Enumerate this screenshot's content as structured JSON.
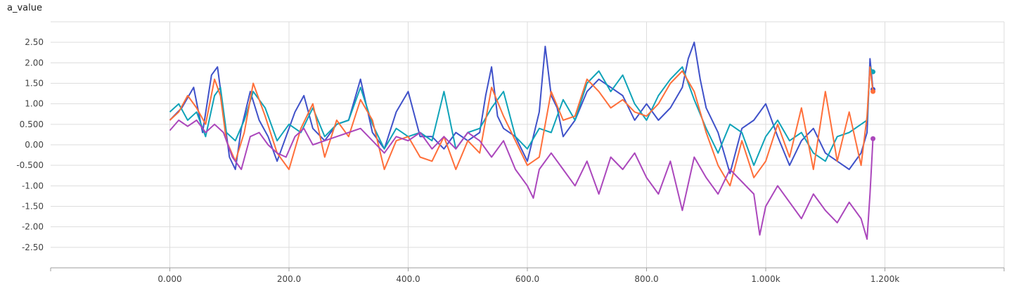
{
  "chart_data": {
    "type": "line",
    "title": "a_value",
    "xlabel": "",
    "ylabel": "",
    "xlim": [
      -200,
      1400
    ],
    "ylim": [
      -3.0,
      3.0
    ],
    "x_ticks": [
      {
        "value": 0,
        "label": "0.000"
      },
      {
        "value": 200,
        "label": "200.0"
      },
      {
        "value": 400,
        "label": "400.0"
      },
      {
        "value": 600,
        "label": "600.0"
      },
      {
        "value": 800,
        "label": "800.0"
      },
      {
        "value": 1000,
        "label": "1.000k"
      },
      {
        "value": 1200,
        "label": "1.200k"
      }
    ],
    "y_ticks": [
      {
        "value": 2.5,
        "label": "2.50"
      },
      {
        "value": 2.0,
        "label": "2.00"
      },
      {
        "value": 1.5,
        "label": "1.50"
      },
      {
        "value": 1.0,
        "label": "1.00"
      },
      {
        "value": 0.5,
        "label": "0.500"
      },
      {
        "value": 0.0,
        "label": "0.00"
      },
      {
        "value": -0.5,
        "label": "-0.500"
      },
      {
        "value": -1.0,
        "label": "-1.00"
      },
      {
        "value": -1.5,
        "label": "-1.50"
      },
      {
        "value": -2.0,
        "label": "-2.00"
      },
      {
        "value": -2.5,
        "label": "-2.50"
      }
    ],
    "grid": true,
    "legend": "none",
    "series": [
      {
        "color": "#3f51c9",
        "x": [
          0,
          20,
          40,
          55,
          70,
          80,
          90,
          100,
          110,
          120,
          135,
          150,
          165,
          180,
          195,
          210,
          225,
          240,
          260,
          280,
          300,
          320,
          340,
          360,
          380,
          400,
          420,
          440,
          460,
          480,
          500,
          520,
          530,
          540,
          550,
          560,
          580,
          600,
          620,
          630,
          640,
          650,
          660,
          680,
          700,
          720,
          740,
          760,
          780,
          800,
          820,
          840,
          860,
          870,
          880,
          890,
          900,
          920,
          940,
          960,
          980,
          1000,
          1020,
          1040,
          1060,
          1080,
          1100,
          1120,
          1140,
          1160,
          1170,
          1175,
          1180
        ],
        "y": [
          0.6,
          0.9,
          1.4,
          0.3,
          1.7,
          1.9,
          0.8,
          -0.3,
          -0.6,
          0.4,
          1.3,
          0.6,
          0.2,
          -0.4,
          0.2,
          0.8,
          1.2,
          0.4,
          0.1,
          0.5,
          0.6,
          1.6,
          0.3,
          -0.1,
          0.8,
          1.3,
          0.2,
          0.2,
          -0.1,
          0.3,
          0.1,
          0.3,
          1.2,
          1.9,
          0.7,
          0.4,
          0.2,
          -0.4,
          0.8,
          2.4,
          1.2,
          0.9,
          0.2,
          0.6,
          1.3,
          1.6,
          1.4,
          1.2,
          0.6,
          1.0,
          0.6,
          0.9,
          1.4,
          2.1,
          2.5,
          1.6,
          0.9,
          0.3,
          -0.7,
          0.4,
          0.6,
          1.0,
          0.2,
          -0.5,
          0.1,
          0.4,
          -0.2,
          -0.4,
          -0.6,
          -0.2,
          0.3,
          2.1,
          1.35
        ]
      },
      {
        "color": "#0fa3b8",
        "x": [
          0,
          15,
          30,
          45,
          60,
          75,
          85,
          95,
          110,
          125,
          140,
          160,
          180,
          200,
          220,
          240,
          260,
          280,
          300,
          320,
          340,
          360,
          380,
          400,
          420,
          440,
          460,
          480,
          500,
          520,
          540,
          560,
          580,
          600,
          620,
          640,
          660,
          680,
          700,
          720,
          740,
          760,
          780,
          800,
          820,
          840,
          860,
          880,
          900,
          920,
          940,
          960,
          980,
          1000,
          1020,
          1040,
          1060,
          1080,
          1100,
          1120,
          1140,
          1160,
          1170,
          1175,
          1180
        ],
        "y": [
          0.8,
          1.0,
          0.6,
          0.8,
          0.2,
          1.2,
          1.4,
          0.3,
          0.1,
          0.6,
          1.3,
          0.9,
          0.1,
          0.5,
          0.3,
          0.9,
          0.2,
          0.5,
          0.6,
          1.4,
          0.5,
          -0.1,
          0.4,
          0.2,
          0.3,
          0.1,
          1.3,
          -0.1,
          0.3,
          0.4,
          0.9,
          1.3,
          0.2,
          -0.1,
          0.4,
          0.3,
          1.1,
          0.6,
          1.5,
          1.8,
          1.3,
          1.7,
          1.0,
          0.6,
          1.2,
          1.6,
          1.9,
          1.1,
          0.4,
          -0.2,
          0.5,
          0.3,
          -0.5,
          0.2,
          0.6,
          0.1,
          0.3,
          -0.2,
          -0.4,
          0.2,
          0.3,
          0.5,
          0.6,
          1.9,
          1.78
        ]
      },
      {
        "color": "#ff6f3a",
        "x": [
          0,
          15,
          30,
          45,
          60,
          75,
          85,
          95,
          110,
          125,
          140,
          160,
          180,
          200,
          220,
          240,
          260,
          280,
          300,
          320,
          340,
          360,
          380,
          400,
          420,
          440,
          460,
          480,
          500,
          520,
          540,
          560,
          580,
          600,
          620,
          640,
          660,
          680,
          700,
          720,
          740,
          760,
          780,
          800,
          820,
          840,
          860,
          880,
          900,
          920,
          940,
          960,
          980,
          1000,
          1020,
          1040,
          1060,
          1080,
          1100,
          1120,
          1140,
          1160,
          1170,
          1175,
          1180
        ],
        "y": [
          0.6,
          0.8,
          1.2,
          0.9,
          0.5,
          1.6,
          1.2,
          0.1,
          -0.4,
          0.3,
          1.5,
          0.7,
          -0.2,
          -0.6,
          0.4,
          1.0,
          -0.3,
          0.6,
          0.2,
          1.1,
          0.6,
          -0.6,
          0.1,
          0.2,
          -0.3,
          -0.4,
          0.2,
          -0.6,
          0.1,
          -0.2,
          1.4,
          0.7,
          0.1,
          -0.5,
          -0.3,
          1.3,
          0.6,
          0.7,
          1.6,
          1.3,
          0.9,
          1.1,
          0.8,
          0.7,
          1.0,
          1.5,
          1.8,
          1.3,
          0.3,
          -0.5,
          -1.0,
          0.1,
          -0.8,
          -0.4,
          0.5,
          -0.3,
          0.9,
          -0.6,
          1.3,
          -0.4,
          0.8,
          -0.5,
          0.7,
          1.9,
          1.3
        ]
      },
      {
        "color": "#ab47bc",
        "x": [
          0,
          15,
          30,
          45,
          60,
          75,
          90,
          105,
          120,
          135,
          150,
          165,
          180,
          195,
          210,
          225,
          240,
          260,
          280,
          300,
          320,
          340,
          360,
          380,
          400,
          420,
          440,
          460,
          480,
          500,
          520,
          540,
          560,
          580,
          600,
          610,
          620,
          640,
          660,
          680,
          700,
          720,
          740,
          760,
          780,
          800,
          820,
          840,
          860,
          880,
          900,
          920,
          940,
          960,
          980,
          990,
          1000,
          1020,
          1040,
          1060,
          1080,
          1100,
          1120,
          1140,
          1160,
          1170,
          1175,
          1180
        ],
        "y": [
          0.35,
          0.6,
          0.45,
          0.6,
          0.3,
          0.5,
          0.3,
          -0.3,
          -0.6,
          0.2,
          0.3,
          0.0,
          -0.2,
          -0.3,
          0.2,
          0.4,
          0.0,
          0.1,
          0.2,
          0.3,
          0.4,
          0.1,
          -0.2,
          0.2,
          0.1,
          0.3,
          -0.1,
          0.2,
          -0.1,
          0.3,
          0.1,
          -0.3,
          0.1,
          -0.6,
          -1.0,
          -1.3,
          -0.6,
          -0.2,
          -0.6,
          -1.0,
          -0.4,
          -1.2,
          -0.3,
          -0.6,
          -0.2,
          -0.8,
          -1.2,
          -0.4,
          -1.6,
          -0.3,
          -0.8,
          -1.2,
          -0.6,
          -0.9,
          -1.2,
          -2.2,
          -1.5,
          -1.0,
          -1.4,
          -1.8,
          -1.2,
          -1.6,
          -1.9,
          -1.4,
          -1.8,
          -2.3,
          -1.2,
          0.15
        ]
      }
    ]
  }
}
